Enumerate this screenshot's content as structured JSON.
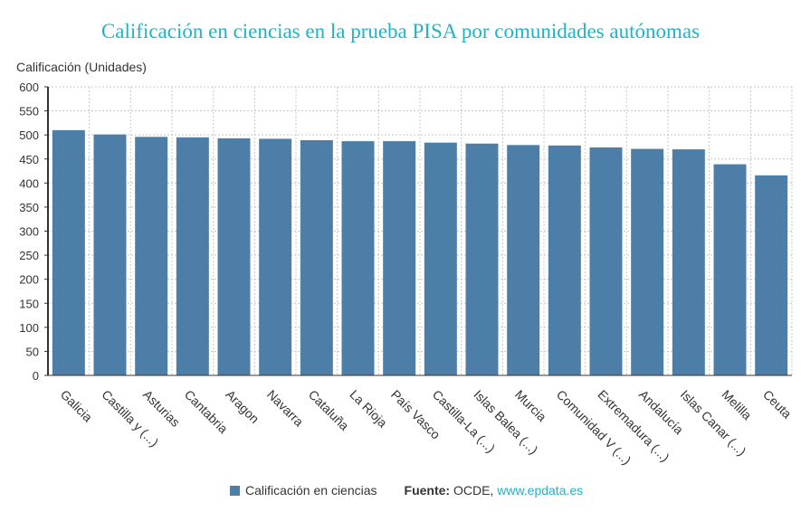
{
  "chart_data": {
    "type": "bar",
    "title": "Calificación en ciencias en la prueba PISA por comunidades autónomas",
    "ylabel": "Calificación (Unidades)",
    "xlabel": "",
    "ylim": [
      0,
      600
    ],
    "yticks": [
      0,
      50,
      100,
      150,
      200,
      250,
      300,
      350,
      400,
      450,
      500,
      550,
      600
    ],
    "grid": true,
    "categories": [
      "Galicia",
      "Castilla y (...)",
      "Asturias",
      "Cantabria",
      "Aragon",
      "Navarra",
      "Cataluña",
      "La Rioja",
      "País Vasco",
      "Castilla-La (...)",
      "Islas Balea (...)",
      "Murcia",
      "Comunidad V (...)",
      "Extremadura (...)",
      "Andalucía",
      "Islas Canar (...)",
      "Melilla",
      "Ceuta"
    ],
    "series": [
      {
        "name": "Calificación en ciencias",
        "color": "#4c7ea8",
        "values": [
          510,
          501,
          496,
          495,
          493,
          492,
          489,
          487,
          487,
          484,
          482,
          479,
          478,
          474,
          471,
          470,
          439,
          416
        ]
      }
    ],
    "legend": "bottom"
  },
  "source": {
    "label": "Fuente:",
    "text": " OCDE, ",
    "link": "www.epdata.es"
  }
}
